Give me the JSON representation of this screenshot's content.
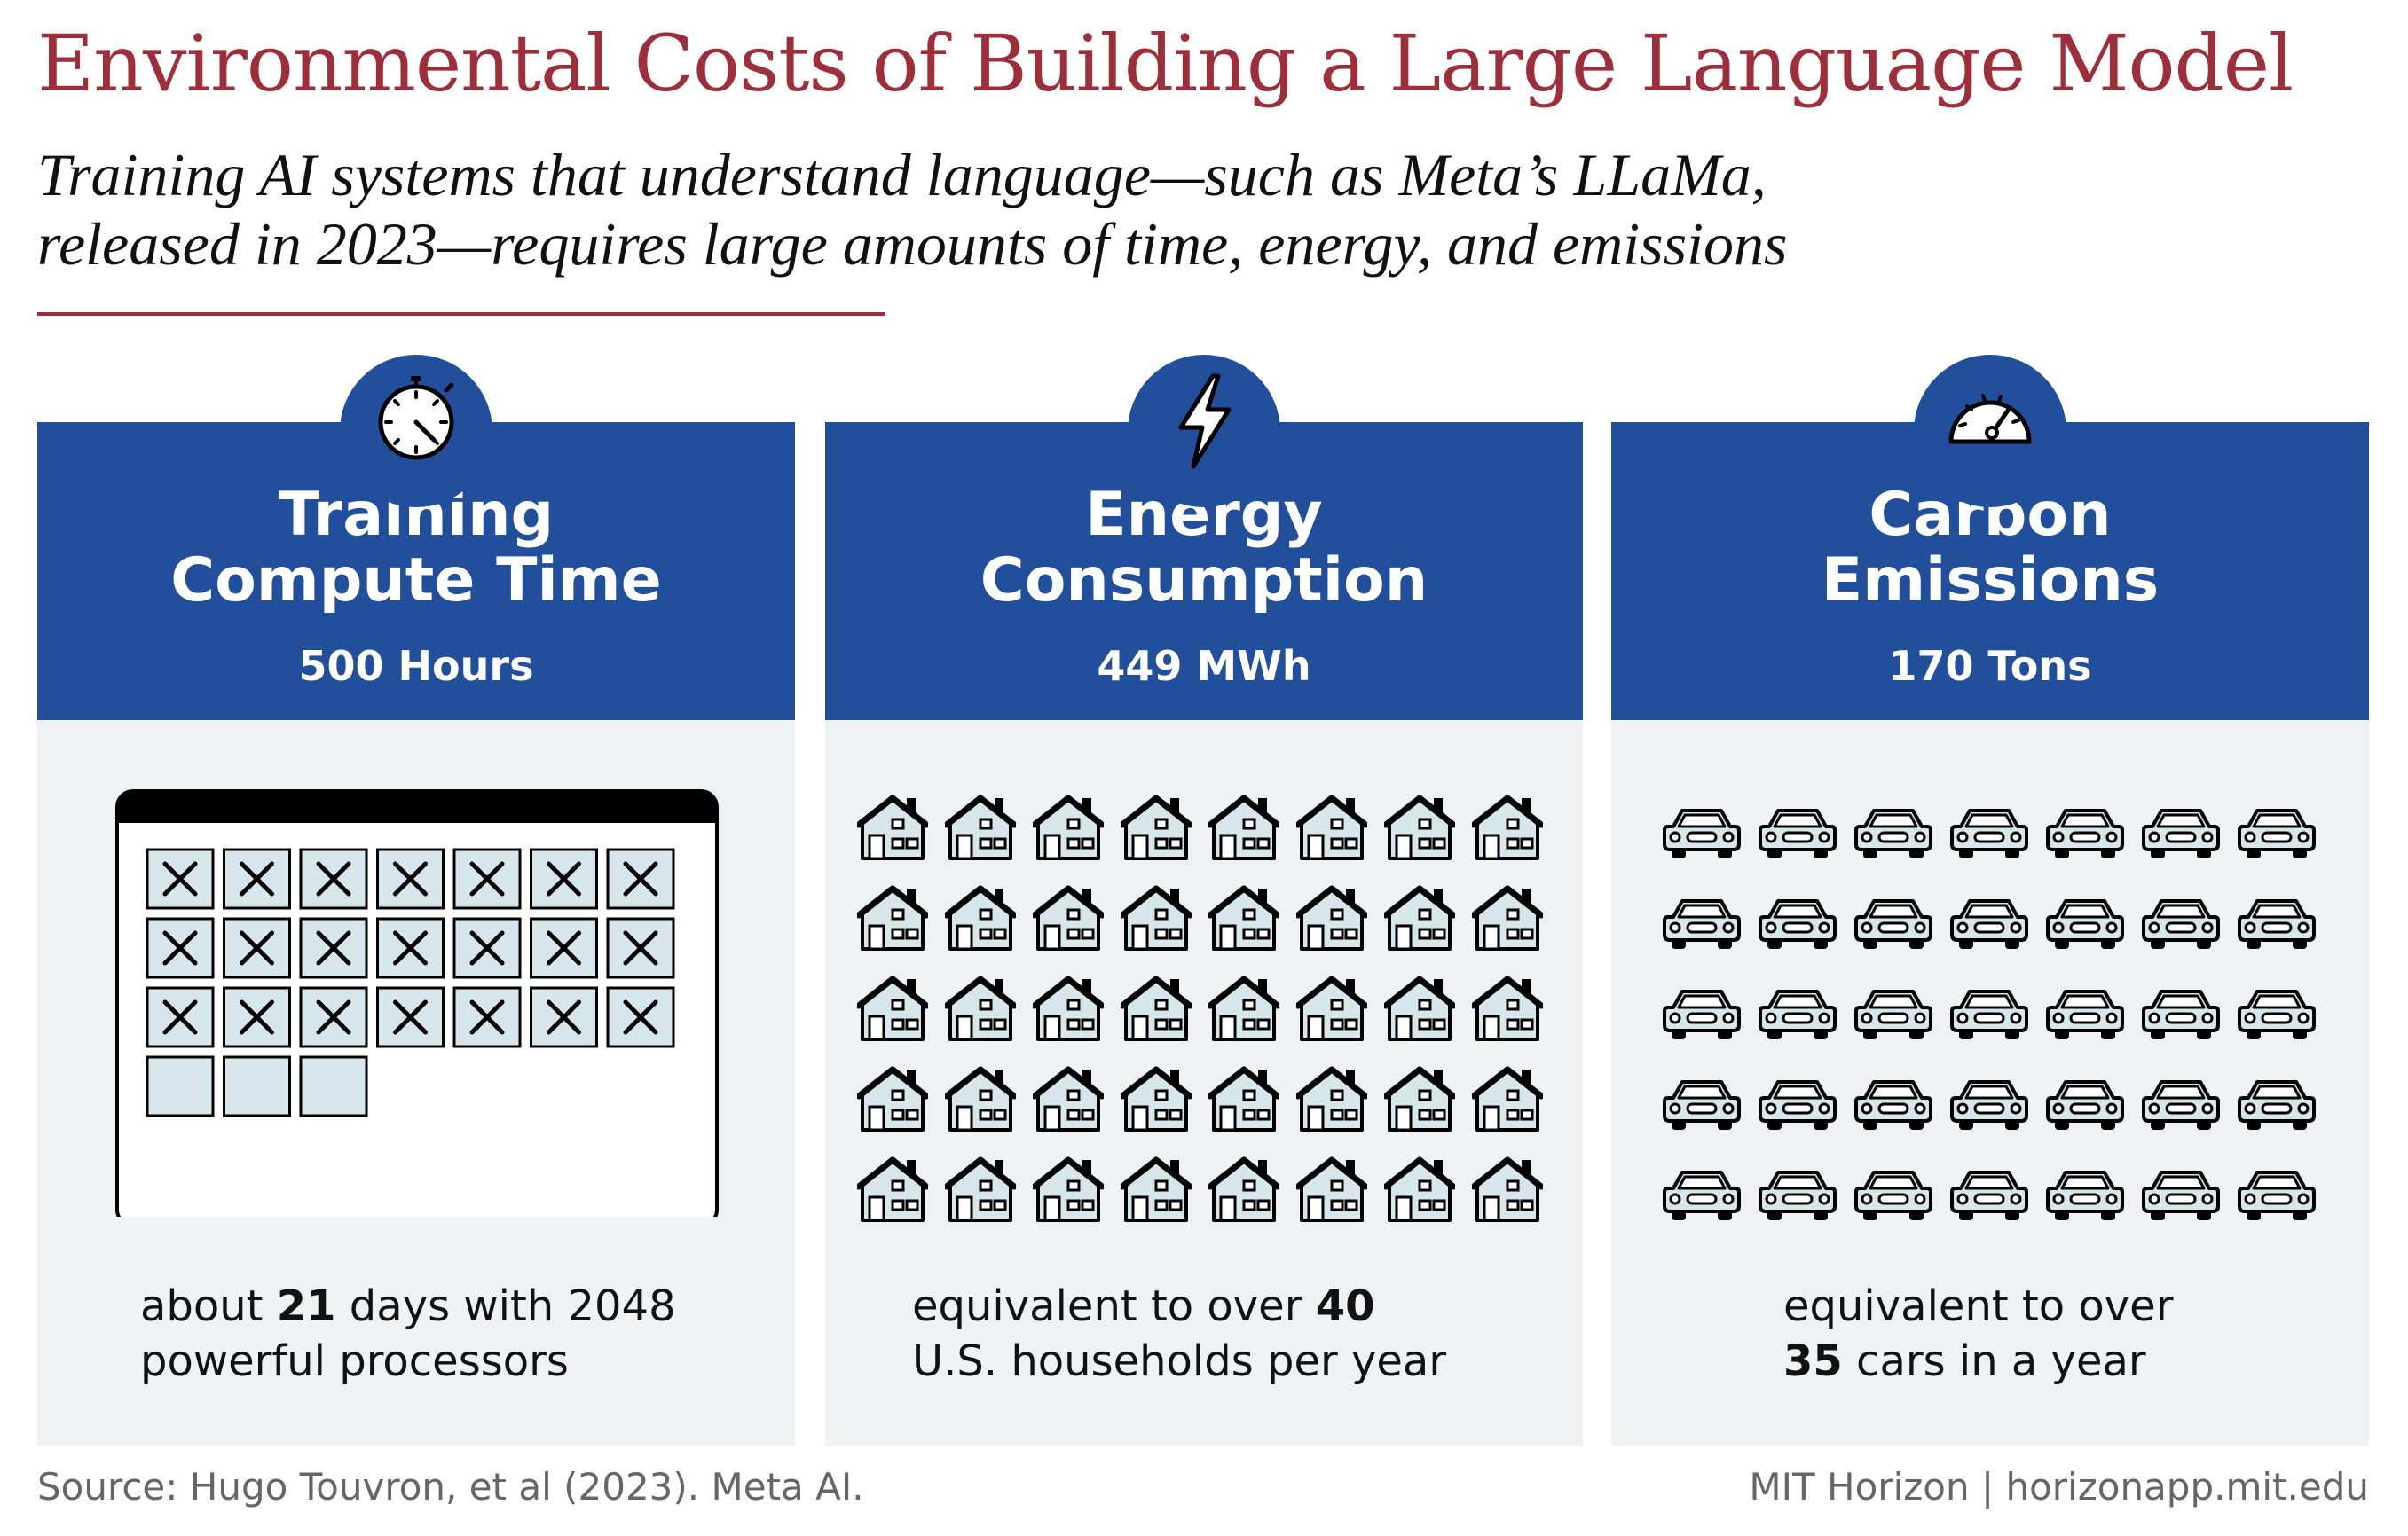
{
  "title": "Environmental Costs of Building a Large Language Model",
  "subtitle_line1": "Training AI systems that understand language—such as Meta’s LLaMa,",
  "subtitle_line2": "released in 2023—requires large amounts of time, energy, and emissions",
  "colors": {
    "accent": "#9e2f3a",
    "panel_blue": "#224f9b",
    "panel_bg": "#eef2f2",
    "cell_fill": "#d6e6ea"
  },
  "panels": [
    {
      "icon": "stopwatch-icon",
      "title_line1": "Training",
      "title_line2": "Compute Time",
      "value": "500 Hours",
      "caption_pre": "about ",
      "caption_bold": "21",
      "caption_post": " days with 2048",
      "caption_line2": "powerful processors",
      "calendar_total_cells": 24,
      "calendar_marked_days": 21
    },
    {
      "icon": "lightning-bolt-icon",
      "title_line1": "Energy",
      "title_line2": "Consumption",
      "value": "449 MWh",
      "caption_pre": "equivalent to over ",
      "caption_bold": "40",
      "caption_post": "",
      "caption_line2": "U.S. households per year",
      "pictogram": "house-icon",
      "pictogram_count": 40,
      "pictogram_columns": 8
    },
    {
      "icon": "speedometer-icon",
      "title_line1": "Carbon",
      "title_line2": "Emissions",
      "value": "170 Tons",
      "caption_pre": "equivalent to over",
      "caption_bold": "35",
      "caption_post": " cars in a year",
      "pictogram": "car-icon",
      "pictogram_count": 35,
      "pictogram_columns": 7
    }
  ],
  "footer": {
    "source": "Source: Hugo Touvron, et al (2023). Meta AI.",
    "credit": "MIT Horizon | horizonapp.mit.edu"
  }
}
